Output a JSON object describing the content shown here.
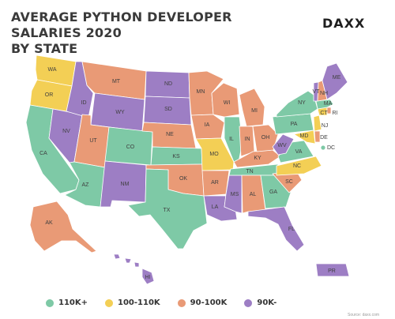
{
  "header": {
    "title_line1": "AVERAGE PYTHON DEVELOPER SALARIES 2020",
    "title_line2": "BY STATE",
    "brand": "DAXX"
  },
  "colors": {
    "c110": "#7ec9a6",
    "c100": "#f3cf55",
    "c90": "#e99a76",
    "c90m": "#9d7ec4"
  },
  "legend": [
    {
      "key": "c110",
      "label": "110K+"
    },
    {
      "key": "c100",
      "label": "100-110K"
    },
    {
      "key": "c90",
      "label": "90-100K"
    },
    {
      "key": "c90m",
      "label": "90K-"
    }
  ],
  "source_note": "Source: daxx.com",
  "states": {
    "WA": "c100",
    "OR": "c100",
    "CA": "c110",
    "NV": "c90m",
    "ID": "c90m",
    "MT": "c90",
    "WY": "c90m",
    "UT": "c90",
    "AZ": "c110",
    "CO": "c110",
    "NM": "c90m",
    "ND": "c90m",
    "SD": "c90m",
    "NE": "c90",
    "KS": "c110",
    "OK": "c90",
    "TX": "c110",
    "MN": "c90",
    "IA": "c90",
    "MO": "c100",
    "AR": "c90",
    "LA": "c90m",
    "WI": "c90",
    "IL": "c110",
    "MS": "c90m",
    "MI": "c90",
    "IN": "c90",
    "KY": "c90",
    "TN": "c110",
    "AL": "c90",
    "OH": "c90",
    "GA": "c110",
    "FL": "c90m",
    "SC": "c90",
    "NC": "c100",
    "VA": "c110",
    "WV": "c90m",
    "PA": "c110",
    "NY": "c110",
    "ME": "c90m",
    "VT": "c90m",
    "NH": "c90",
    "MA": "c110",
    "RI": "c90",
    "CT": "c100",
    "NJ": "c100",
    "DE": "c90",
    "MD": "c100",
    "DC": "c110",
    "AK": "c90",
    "HI": "c90m",
    "PR": "c90m"
  }
}
